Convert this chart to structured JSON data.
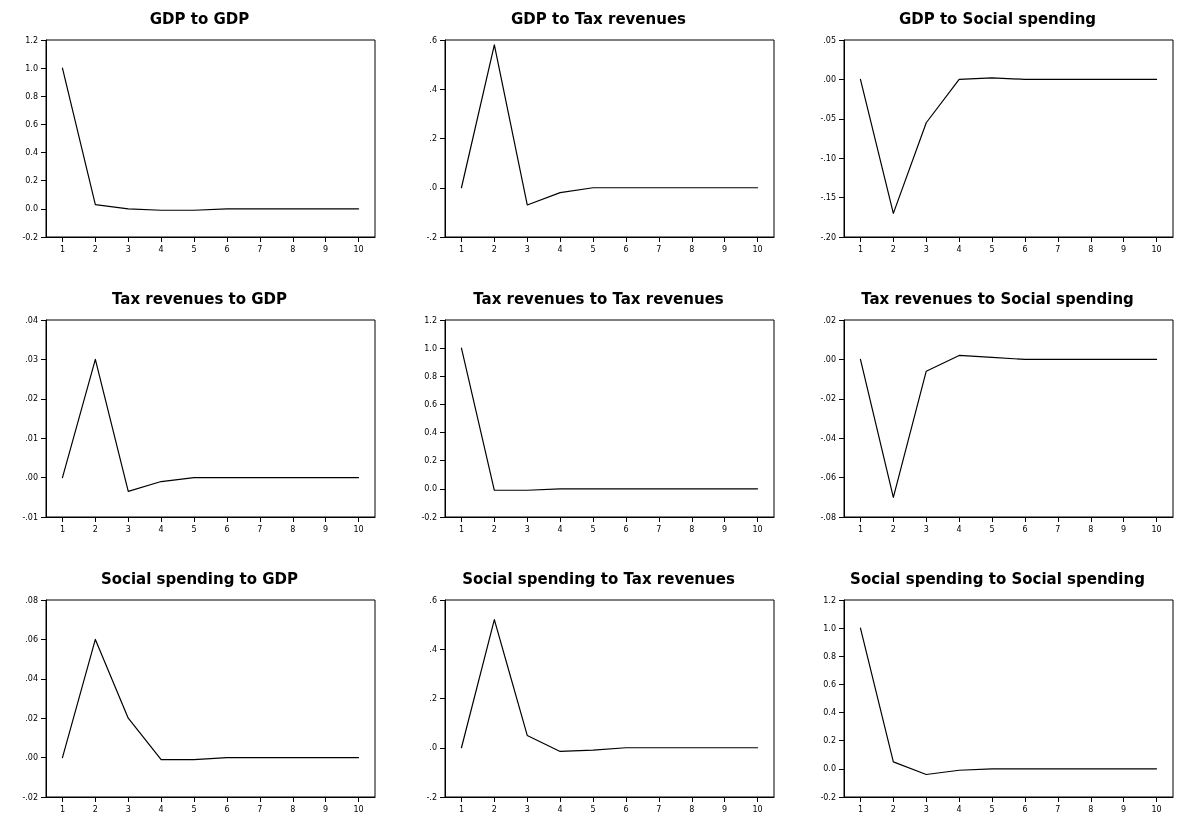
{
  "chart_data": [
    {
      "type": "line",
      "title": "GDP to GDP",
      "categories": [
        "1",
        "2",
        "3",
        "4",
        "5",
        "6",
        "7",
        "8",
        "9",
        "10"
      ],
      "series": [
        {
          "color": "#000000",
          "values": [
            1.0,
            0.03,
            0.0,
            -0.01,
            -0.01,
            0,
            0,
            0,
            0,
            0
          ]
        }
      ],
      "ylim": [
        -0.2,
        1.2
      ],
      "yticks": [
        {
          "value": -0.2,
          "label": "-0.2"
        },
        {
          "value": 0,
          "label": "0.0"
        },
        {
          "value": 0.2,
          "label": "0.2"
        },
        {
          "value": 0.4,
          "label": "0.4"
        },
        {
          "value": 0.6,
          "label": "0.6"
        },
        {
          "value": 0.8,
          "label": "0.8"
        },
        {
          "value": 1.0,
          "label": "1.0"
        },
        {
          "value": 1.2,
          "label": "1.2"
        }
      ],
      "marker": "none",
      "line_style": "solid",
      "grid": false
    },
    {
      "type": "line",
      "title": "GDP to Tax revenues",
      "categories": [
        "1",
        "2",
        "3",
        "4",
        "5",
        "6",
        "7",
        "8",
        "9",
        "10"
      ],
      "series": [
        {
          "color": "#000000",
          "values": [
            0,
            0.58,
            -0.07,
            -0.02,
            0,
            0,
            0,
            0,
            0,
            0
          ]
        }
      ],
      "ylim": [
        -0.2,
        0.6
      ],
      "yticks": [
        {
          "value": -0.2,
          "label": "-.2"
        },
        {
          "value": 0,
          "label": ".0"
        },
        {
          "value": 0.2,
          "label": ".2"
        },
        {
          "value": 0.4,
          "label": ".4"
        },
        {
          "value": 0.6,
          "label": ".6"
        }
      ],
      "marker": "none",
      "line_style": "solid",
      "grid": false
    },
    {
      "type": "line",
      "title": "GDP to Social spending",
      "categories": [
        "1",
        "2",
        "3",
        "4",
        "5",
        "6",
        "7",
        "8",
        "9",
        "10"
      ],
      "series": [
        {
          "color": "#000000",
          "values": [
            0,
            -0.17,
            -0.055,
            0,
            0.002,
            0,
            0,
            0,
            0,
            0
          ]
        }
      ],
      "ylim": [
        -0.2,
        0.05
      ],
      "yticks": [
        {
          "value": -0.2,
          "label": "-.20"
        },
        {
          "value": -0.15,
          "label": "-.15"
        },
        {
          "value": -0.1,
          "label": "-.10"
        },
        {
          "value": -0.05,
          "label": "-.05"
        },
        {
          "value": 0,
          "label": ".00"
        },
        {
          "value": 0.05,
          "label": ".05"
        }
      ],
      "marker": "none",
      "line_style": "solid",
      "grid": false
    },
    {
      "type": "line",
      "title": "Tax revenues to GDP",
      "categories": [
        "1",
        "2",
        "3",
        "4",
        "5",
        "6",
        "7",
        "8",
        "9",
        "10"
      ],
      "series": [
        {
          "color": "#000000",
          "values": [
            0,
            0.03,
            -0.0035,
            -0.001,
            0,
            0,
            0,
            0,
            0,
            0
          ]
        }
      ],
      "ylim": [
        -0.01,
        0.04
      ],
      "yticks": [
        {
          "value": -0.01,
          "label": "-.01"
        },
        {
          "value": 0,
          "label": ".00"
        },
        {
          "value": 0.01,
          "label": ".01"
        },
        {
          "value": 0.02,
          "label": ".02"
        },
        {
          "value": 0.03,
          "label": ".03"
        },
        {
          "value": 0.04,
          "label": ".04"
        }
      ],
      "marker": "none",
      "line_style": "solid",
      "grid": false
    },
    {
      "type": "line",
      "title": "Tax revenues to Tax revenues",
      "categories": [
        "1",
        "2",
        "3",
        "4",
        "5",
        "6",
        "7",
        "8",
        "9",
        "10"
      ],
      "series": [
        {
          "color": "#000000",
          "values": [
            1.0,
            -0.01,
            -0.01,
            0,
            0,
            0,
            0,
            0,
            0,
            0
          ]
        }
      ],
      "ylim": [
        -0.2,
        1.2
      ],
      "yticks": [
        {
          "value": -0.2,
          "label": "-0.2"
        },
        {
          "value": 0,
          "label": "0.0"
        },
        {
          "value": 0.2,
          "label": "0.2"
        },
        {
          "value": 0.4,
          "label": "0.4"
        },
        {
          "value": 0.6,
          "label": "0.6"
        },
        {
          "value": 0.8,
          "label": "0.8"
        },
        {
          "value": 1.0,
          "label": "1.0"
        },
        {
          "value": 1.2,
          "label": "1.2"
        }
      ],
      "marker": "none",
      "line_style": "solid",
      "grid": false
    },
    {
      "type": "line",
      "title": "Tax revenues to Social spending",
      "categories": [
        "1",
        "2",
        "3",
        "4",
        "5",
        "6",
        "7",
        "8",
        "9",
        "10"
      ],
      "series": [
        {
          "color": "#000000",
          "values": [
            0,
            -0.07,
            -0.006,
            0.002,
            0.001,
            0,
            0,
            0,
            0,
            0
          ]
        }
      ],
      "ylim": [
        -0.08,
        0.02
      ],
      "yticks": [
        {
          "value": -0.08,
          "label": "-.08"
        },
        {
          "value": -0.06,
          "label": "-.06"
        },
        {
          "value": -0.04,
          "label": "-.04"
        },
        {
          "value": -0.02,
          "label": "-.02"
        },
        {
          "value": 0,
          "label": ".00"
        },
        {
          "value": 0.02,
          "label": ".02"
        }
      ],
      "marker": "none",
      "line_style": "solid",
      "grid": false
    },
    {
      "type": "line",
      "title": "Social spending to GDP",
      "categories": [
        "1",
        "2",
        "3",
        "4",
        "5",
        "6",
        "7",
        "8",
        "9",
        "10"
      ],
      "series": [
        {
          "color": "#000000",
          "values": [
            0,
            0.06,
            0.02,
            -0.001,
            -0.001,
            0,
            0,
            0,
            0,
            0
          ]
        }
      ],
      "ylim": [
        -0.02,
        0.08
      ],
      "yticks": [
        {
          "value": -0.02,
          "label": "-.02"
        },
        {
          "value": 0,
          "label": ".00"
        },
        {
          "value": 0.02,
          "label": ".02"
        },
        {
          "value": 0.04,
          "label": ".04"
        },
        {
          "value": 0.06,
          "label": ".06"
        },
        {
          "value": 0.08,
          "label": ".08"
        }
      ],
      "marker": "none",
      "line_style": "solid",
      "grid": false
    },
    {
      "type": "line",
      "title": "Social spending to Tax revenues",
      "categories": [
        "1",
        "2",
        "3",
        "4",
        "5",
        "6",
        "7",
        "8",
        "9",
        "10"
      ],
      "series": [
        {
          "color": "#000000",
          "values": [
            0,
            0.52,
            0.05,
            -0.015,
            -0.01,
            0,
            0,
            0,
            0,
            0
          ]
        }
      ],
      "ylim": [
        -0.2,
        0.6
      ],
      "yticks": [
        {
          "value": -0.2,
          "label": "-.2"
        },
        {
          "value": 0,
          "label": ".0"
        },
        {
          "value": 0.2,
          "label": ".2"
        },
        {
          "value": 0.4,
          "label": ".4"
        },
        {
          "value": 0.6,
          "label": ".6"
        }
      ],
      "marker": "none",
      "line_style": "solid",
      "grid": false
    },
    {
      "type": "line",
      "title": "Social spending to Social spending",
      "categories": [
        "1",
        "2",
        "3",
        "4",
        "5",
        "6",
        "7",
        "8",
        "9",
        "10"
      ],
      "series": [
        {
          "color": "#000000",
          "values": [
            1.0,
            0.05,
            -0.04,
            -0.01,
            0,
            0,
            0,
            0,
            0,
            0
          ]
        }
      ],
      "ylim": [
        -0.2,
        1.2
      ],
      "yticks": [
        {
          "value": -0.2,
          "label": "-0.2"
        },
        {
          "value": 0,
          "label": "0.0"
        },
        {
          "value": 0.2,
          "label": "0.2"
        },
        {
          "value": 0.4,
          "label": "0.4"
        },
        {
          "value": 0.6,
          "label": "0.6"
        },
        {
          "value": 0.8,
          "label": "0.8"
        },
        {
          "value": 1.0,
          "label": "1.0"
        },
        {
          "value": 1.2,
          "label": "1.2"
        }
      ],
      "marker": "none",
      "line_style": "solid",
      "grid": false
    }
  ]
}
